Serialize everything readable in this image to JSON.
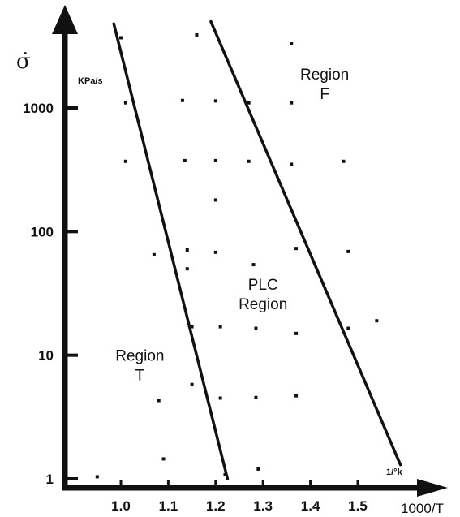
{
  "chart_data": {
    "type": "scatter",
    "title": "",
    "xlabel": "1000/T",
    "ylabel": "σ̇",
    "x_unit": "1/°k",
    "y_unit": "KPa/s",
    "xlim": [
      0.95,
      1.6
    ],
    "ylim": [
      0.9,
      5000
    ],
    "y_scale": "log",
    "x_ticks": [
      1.0,
      1.1,
      1.2,
      1.3,
      1.4,
      1.5
    ],
    "x_tick_labels": [
      "1.0",
      "1.1",
      "1.2",
      "1.3",
      "1.4",
      "1.5"
    ],
    "y_ticks": [
      1,
      10,
      100,
      1000
    ],
    "y_tick_labels": [
      "1",
      "10",
      "100",
      "1000"
    ],
    "grid": false,
    "points": [
      {
        "x": 0.95,
        "y": 1.04
      },
      {
        "x": 1.0,
        "y": 3700
      },
      {
        "x": 1.01,
        "y": 1100
      },
      {
        "x": 1.01,
        "y": 370
      },
      {
        "x": 1.07,
        "y": 65
      },
      {
        "x": 1.08,
        "y": 4.3
      },
      {
        "x": 1.09,
        "y": 1.45
      },
      {
        "x": 1.13,
        "y": 1150
      },
      {
        "x": 1.135,
        "y": 375
      },
      {
        "x": 1.14,
        "y": 71
      },
      {
        "x": 1.14,
        "y": 50
      },
      {
        "x": 1.15,
        "y": 17
      },
      {
        "x": 1.15,
        "y": 5.8
      },
      {
        "x": 1.2,
        "y": 1140
      },
      {
        "x": 1.2,
        "y": 375
      },
      {
        "x": 1.2,
        "y": 180
      },
      {
        "x": 1.2,
        "y": 68
      },
      {
        "x": 1.21,
        "y": 17
      },
      {
        "x": 1.21,
        "y": 4.5
      },
      {
        "x": 1.22,
        "y": 1.08
      },
      {
        "x": 1.16,
        "y": 3900
      },
      {
        "x": 1.27,
        "y": 1100
      },
      {
        "x": 1.27,
        "y": 370
      },
      {
        "x": 1.28,
        "y": 54
      },
      {
        "x": 1.285,
        "y": 16.5
      },
      {
        "x": 1.285,
        "y": 4.55
      },
      {
        "x": 1.29,
        "y": 1.2
      },
      {
        "x": 1.36,
        "y": 3300
      },
      {
        "x": 1.36,
        "y": 1100
      },
      {
        "x": 1.36,
        "y": 350
      },
      {
        "x": 1.37,
        "y": 73
      },
      {
        "x": 1.37,
        "y": 15
      },
      {
        "x": 1.37,
        "y": 4.7
      },
      {
        "x": 1.47,
        "y": 370
      },
      {
        "x": 1.48,
        "y": 69
      },
      {
        "x": 1.48,
        "y": 16.5
      },
      {
        "x": 1.54,
        "y": 19
      }
    ],
    "lines": [
      {
        "from": [
          0.985,
          4800
        ],
        "to": [
          1.225,
          1.0
        ]
      },
      {
        "from": [
          1.19,
          5000
        ],
        "to": [
          1.59,
          1.3
        ]
      }
    ],
    "annotations": [
      {
        "text_lines": [
          "Region",
          "F"
        ],
        "x": 1.43,
        "y": 1500
      },
      {
        "text_lines": [
          "PLC",
          "Region"
        ],
        "x": 1.3,
        "y": 30
      },
      {
        "text_lines": [
          "Region",
          "T"
        ],
        "x": 1.04,
        "y": 8
      }
    ]
  }
}
